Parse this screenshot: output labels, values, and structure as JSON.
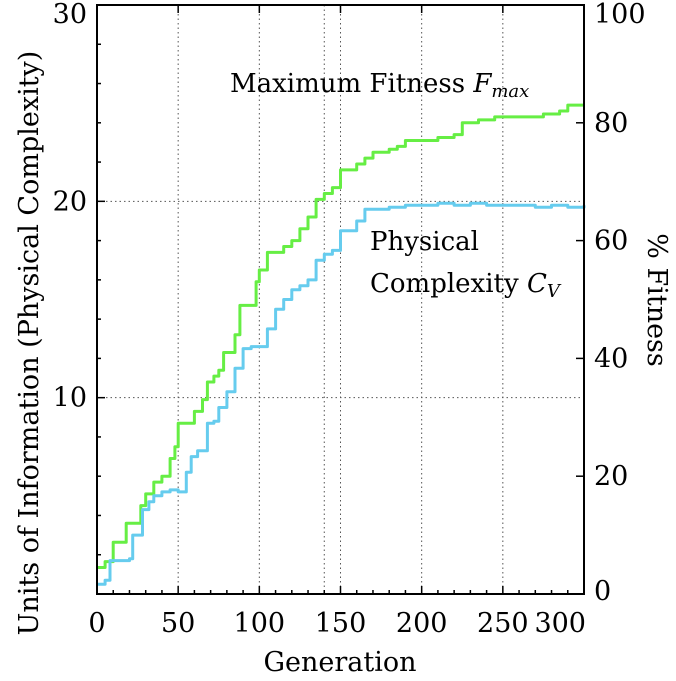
{
  "chart_data": {
    "type": "line",
    "xlabel": "Generation",
    "ylabel": "Units of Information (Physical Complexity)",
    "y2label": "% Fitness",
    "xlim": [
      0,
      300
    ],
    "ylim": [
      0,
      30
    ],
    "y2lim": [
      0,
      100
    ],
    "x_ticks": [
      0,
      50,
      100,
      150,
      200,
      250,
      300
    ],
    "y_ticks": [
      10,
      20,
      30
    ],
    "y2_ticks": [
      0,
      20,
      40,
      60,
      80,
      100
    ],
    "grid": true,
    "colors": {
      "fitness": "#66ee44",
      "complexity": "#66ccee"
    },
    "annotations": {
      "fitness_label": "Maximum Fitness",
      "fitness_symbol": "F",
      "fitness_symbol_sub": "max",
      "complexity_label_line1": "Physical",
      "complexity_label_line2": "Complexity",
      "complexity_symbol": "C",
      "complexity_symbol_sub": "V"
    },
    "series": [
      {
        "key": "fitness",
        "axis": "right",
        "points": [
          [
            0,
            4.5
          ],
          [
            5,
            5.5
          ],
          [
            10,
            8.8
          ],
          [
            15,
            8.8
          ],
          [
            18,
            12
          ],
          [
            25,
            12
          ],
          [
            27,
            15
          ],
          [
            30,
            17
          ],
          [
            35,
            19
          ],
          [
            40,
            20
          ],
          [
            45,
            23
          ],
          [
            48,
            25
          ],
          [
            50,
            29
          ],
          [
            58,
            29
          ],
          [
            60,
            31
          ],
          [
            65,
            33
          ],
          [
            68,
            36
          ],
          [
            72,
            37
          ],
          [
            75,
            38
          ],
          [
            78,
            41
          ],
          [
            85,
            44
          ],
          [
            88,
            49
          ],
          [
            95,
            49
          ],
          [
            98,
            53
          ],
          [
            100,
            55
          ],
          [
            105,
            58
          ],
          [
            110,
            58
          ],
          [
            115,
            59
          ],
          [
            120,
            60
          ],
          [
            125,
            62
          ],
          [
            130,
            64
          ],
          [
            135,
            67
          ],
          [
            140,
            68
          ],
          [
            145,
            69
          ],
          [
            150,
            72
          ],
          [
            155,
            72
          ],
          [
            160,
            73
          ],
          [
            165,
            74
          ],
          [
            170,
            75
          ],
          [
            180,
            75.5
          ],
          [
            185,
            76
          ],
          [
            190,
            77
          ],
          [
            200,
            77
          ],
          [
            210,
            77.5
          ],
          [
            220,
            78
          ],
          [
            225,
            80
          ],
          [
            235,
            80.5
          ],
          [
            245,
            81
          ],
          [
            260,
            81
          ],
          [
            275,
            81.5
          ],
          [
            285,
            82
          ],
          [
            290,
            83
          ],
          [
            300,
            83
          ]
        ]
      },
      {
        "key": "complexity",
        "axis": "left",
        "points": [
          [
            0,
            0.5
          ],
          [
            5,
            0.7
          ],
          [
            8,
            1.7
          ],
          [
            15,
            1.7
          ],
          [
            20,
            1.8
          ],
          [
            22,
            3.0
          ],
          [
            28,
            4.3
          ],
          [
            32,
            4.7
          ],
          [
            35,
            5.0
          ],
          [
            40,
            5.2
          ],
          [
            45,
            5.3
          ],
          [
            50,
            5.2
          ],
          [
            55,
            6.2
          ],
          [
            58,
            7.0
          ],
          [
            62,
            7.3
          ],
          [
            68,
            8.7
          ],
          [
            72,
            8.8
          ],
          [
            75,
            9.5
          ],
          [
            80,
            10.3
          ],
          [
            85,
            11.5
          ],
          [
            90,
            12.5
          ],
          [
            95,
            12.6
          ],
          [
            100,
            12.6
          ],
          [
            105,
            13.5
          ],
          [
            110,
            14.5
          ],
          [
            115,
            15.0
          ],
          [
            120,
            15.5
          ],
          [
            125,
            15.7
          ],
          [
            130,
            16.0
          ],
          [
            135,
            17.0
          ],
          [
            140,
            17.3
          ],
          [
            145,
            17.5
          ],
          [
            150,
            18.5
          ],
          [
            155,
            18.5
          ],
          [
            160,
            19.0
          ],
          [
            165,
            19.6
          ],
          [
            170,
            19.6
          ],
          [
            180,
            19.7
          ],
          [
            190,
            19.8
          ],
          [
            200,
            19.8
          ],
          [
            210,
            19.9
          ],
          [
            220,
            19.8
          ],
          [
            230,
            19.9
          ],
          [
            240,
            19.8
          ],
          [
            250,
            19.8
          ],
          [
            260,
            19.8
          ],
          [
            270,
            19.7
          ],
          [
            280,
            19.8
          ],
          [
            290,
            19.7
          ],
          [
            300,
            19.8
          ]
        ]
      }
    ]
  }
}
